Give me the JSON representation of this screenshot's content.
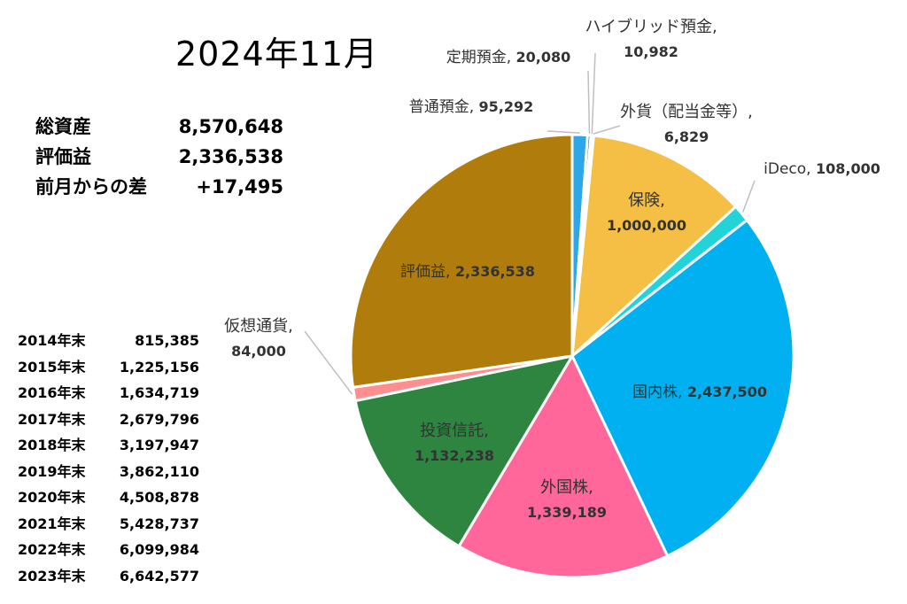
{
  "title": "2024年11月",
  "summary": [
    {
      "label": "総資産",
      "value": "8,570,648"
    },
    {
      "label": "評価益",
      "value": "2,336,538"
    },
    {
      "label": "前月からの差",
      "value": "+17,495"
    }
  ],
  "history": [
    {
      "year": "2014年末",
      "value": "815,385"
    },
    {
      "year": "2015年末",
      "value": "1,225,156"
    },
    {
      "year": "2016年末",
      "value": "1,634,719"
    },
    {
      "year": "2017年末",
      "value": "2,679,796"
    },
    {
      "year": "2018年末",
      "value": "3,197,947"
    },
    {
      "year": "2019年末",
      "value": "3,862,110"
    },
    {
      "year": "2020年末",
      "value": "4,508,878"
    },
    {
      "year": "2021年末",
      "value": "5,428,737"
    },
    {
      "year": "2022年末",
      "value": "6,099,984"
    },
    {
      "year": "2023年末",
      "value": "6,642,577"
    }
  ],
  "chart_data": {
    "type": "pie",
    "title": "2024年11月",
    "legend": "none",
    "slices": [
      {
        "name": "普通預金",
        "value": 95292,
        "label_value": "95,292",
        "color": "#2ea7e8"
      },
      {
        "name": "定期預金",
        "value": 20080,
        "label_value": "20,080",
        "color": "#1f4e79"
      },
      {
        "name": "ハイブリッド預金",
        "value": 10982,
        "label_value": "10,982",
        "color": "#a9d18e"
      },
      {
        "name": "外貨（配当金等）",
        "value": 6829,
        "label_value": "6,829",
        "color": "#d9d9d9"
      },
      {
        "name": "保険",
        "value": 1000000,
        "label_value": "1,000,000",
        "color": "#f4bf44"
      },
      {
        "name": "iDeco",
        "value": 108000,
        "label_value": "108,000",
        "color": "#22d3d8"
      },
      {
        "name": "国内株",
        "value": 2437500,
        "label_value": "2,437,500",
        "color": "#00b0f0"
      },
      {
        "name": "外国株",
        "value": 1339189,
        "label_value": "1,339,189",
        "color": "#ff6699"
      },
      {
        "name": "投資信託",
        "value": 1132238,
        "label_value": "1,132,238",
        "color": "#2e8540"
      },
      {
        "name": "仮想通貨",
        "value": 84000,
        "label_value": "84,000",
        "color": "#ff8f8f"
      },
      {
        "name": "評価益",
        "value": 2336538,
        "label_value": "2,336,538",
        "color": "#b07d0c"
      }
    ]
  }
}
